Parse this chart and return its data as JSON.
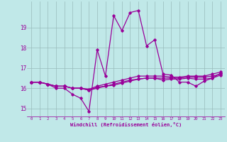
{
  "title": "",
  "xlabel": "Windchill (Refroidissement éolien,°C)",
  "bg_color": "#c0e8e8",
  "line_color": "#990099",
  "grid_color": "#99bbbb",
  "xlim": [
    -0.5,
    23.5
  ],
  "ylim": [
    14.6,
    20.3
  ],
  "yticks": [
    15,
    16,
    17,
    18,
    19
  ],
  "xticks": [
    0,
    1,
    2,
    3,
    4,
    5,
    6,
    7,
    8,
    9,
    10,
    11,
    12,
    13,
    14,
    15,
    16,
    17,
    18,
    19,
    20,
    21,
    22,
    23
  ],
  "series": [
    {
      "x": [
        0,
        1,
        2,
        3,
        4,
        5,
        6,
        7,
        8,
        9,
        10,
        11,
        12,
        13,
        14,
        15,
        16,
        17,
        18,
        19,
        20,
        21,
        22,
        23
      ],
      "y": [
        16.3,
        16.3,
        16.2,
        16.0,
        16.0,
        15.7,
        15.5,
        14.85,
        17.9,
        16.6,
        19.6,
        18.85,
        19.75,
        19.85,
        18.1,
        18.4,
        16.7,
        16.65,
        16.3,
        16.3,
        16.1,
        16.35,
        16.5,
        16.75
      ]
    },
    {
      "x": [
        0,
        1,
        2,
        3,
        4,
        5,
        6,
        7,
        8,
        9,
        10,
        11,
        12,
        13,
        14,
        15,
        16,
        17,
        18,
        19,
        20,
        21,
        22,
        23
      ],
      "y": [
        16.3,
        16.3,
        16.2,
        16.1,
        16.1,
        16.0,
        16.0,
        15.95,
        16.1,
        16.2,
        16.3,
        16.4,
        16.5,
        16.6,
        16.6,
        16.6,
        16.6,
        16.55,
        16.55,
        16.6,
        16.6,
        16.6,
        16.7,
        16.8
      ]
    },
    {
      "x": [
        0,
        1,
        2,
        3,
        4,
        5,
        6,
        7,
        8,
        9,
        10,
        11,
        12,
        13,
        14,
        15,
        16,
        17,
        18,
        19,
        20,
        21,
        22,
        23
      ],
      "y": [
        16.3,
        16.3,
        16.2,
        16.1,
        16.1,
        16.0,
        16.0,
        15.9,
        16.0,
        16.1,
        16.2,
        16.3,
        16.4,
        16.45,
        16.5,
        16.5,
        16.5,
        16.5,
        16.5,
        16.55,
        16.55,
        16.55,
        16.6,
        16.7
      ]
    },
    {
      "x": [
        0,
        1,
        2,
        3,
        4,
        5,
        6,
        7,
        8,
        9,
        10,
        11,
        12,
        13,
        14,
        15,
        16,
        17,
        18,
        19,
        20,
        21,
        22,
        23
      ],
      "y": [
        16.3,
        16.3,
        16.2,
        16.1,
        16.1,
        16.0,
        16.0,
        15.9,
        16.05,
        16.1,
        16.15,
        16.25,
        16.35,
        16.45,
        16.5,
        16.5,
        16.4,
        16.45,
        16.45,
        16.5,
        16.45,
        16.45,
        16.5,
        16.65
      ]
    }
  ]
}
